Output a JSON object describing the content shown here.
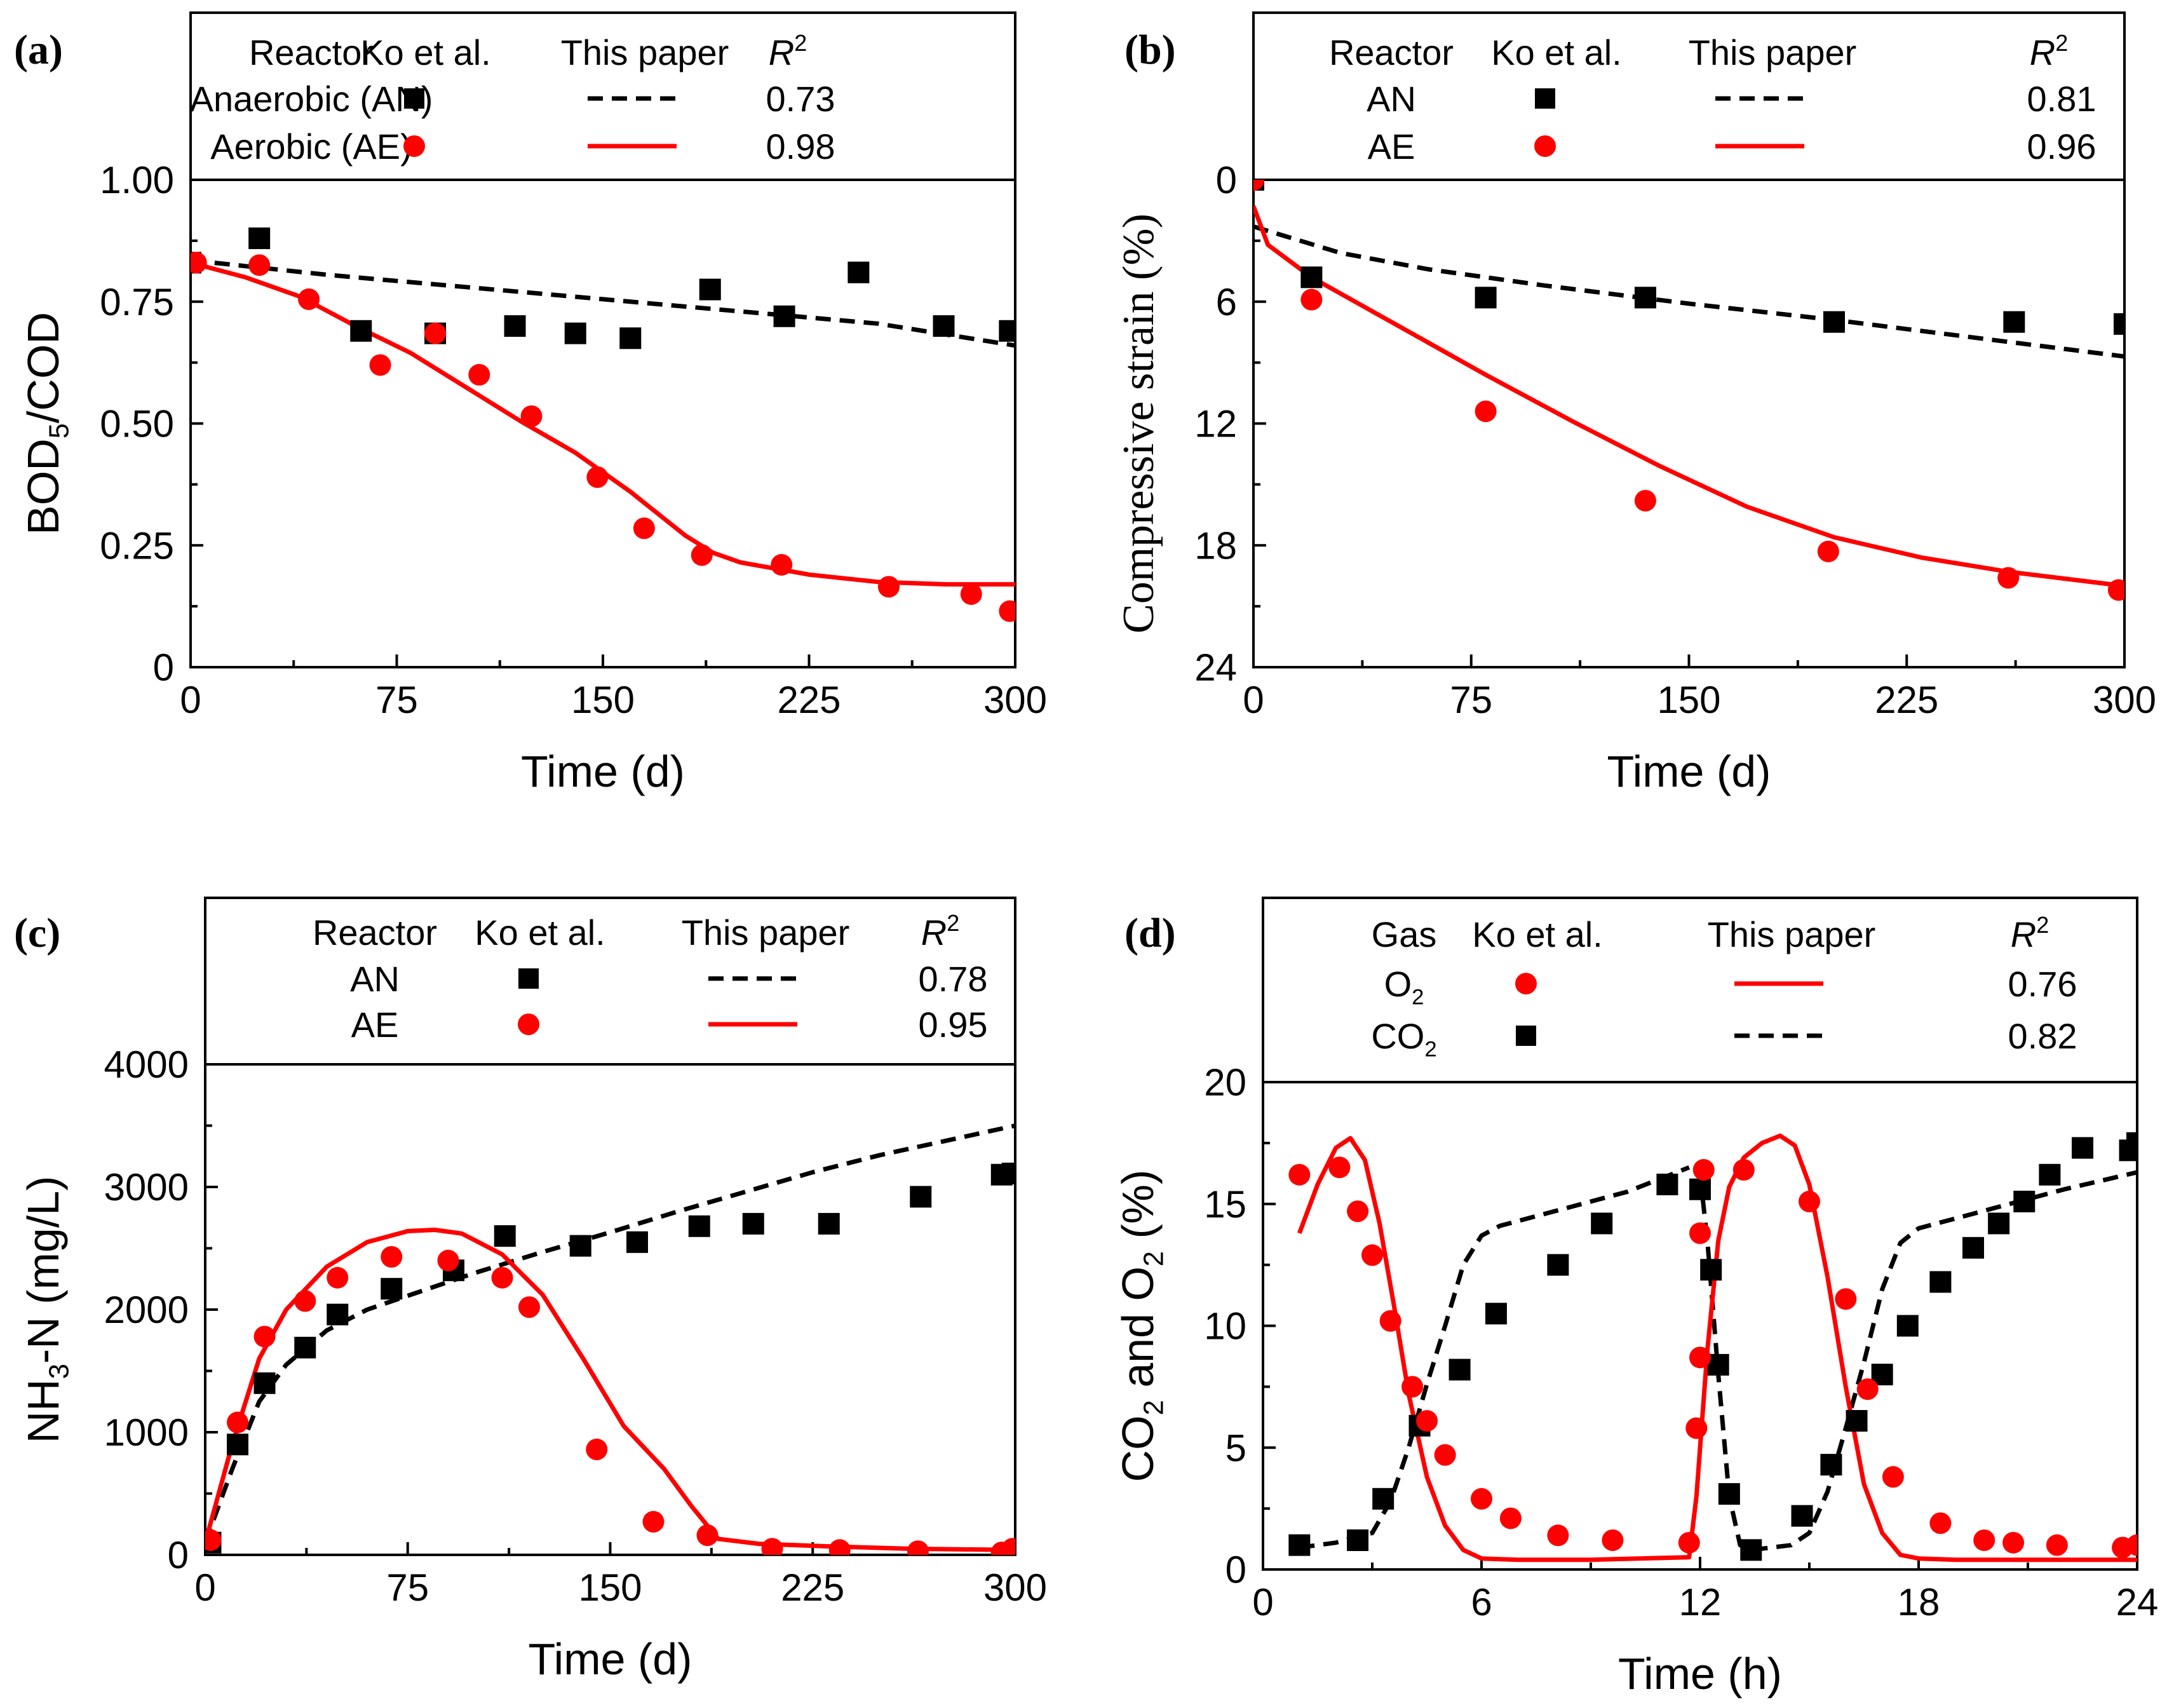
{
  "figure_title": "",
  "colors": {
    "AN": "#000000",
    "AE": "#ff0000",
    "frame": "#000000"
  },
  "chart_data": [
    {
      "panel_label": "(a)",
      "type": "scatter",
      "xlabel": "Time (d)",
      "ylabel": "BOD5/COD",
      "xlim": [
        0,
        300
      ],
      "ylim": [
        0,
        1.0
      ],
      "y_reversed": false,
      "xticks": [
        "0",
        "75",
        "150",
        "225",
        "300"
      ],
      "yticks": [
        "0",
        "0.25",
        "0.50",
        "0.75",
        "1.00"
      ],
      "xtick_values": [
        0,
        75,
        150,
        225,
        300
      ],
      "ytick_values": [
        0,
        0.25,
        0.5,
        0.75,
        1.0
      ],
      "xminor": [
        37.5,
        112.5,
        187.5,
        262.5
      ],
      "yminor": [
        0.125,
        0.375,
        0.625,
        0.875
      ],
      "legend": {
        "headers": [
          "Reactor",
          "Ko et al.",
          "This paper",
          "R2"
        ],
        "rows": [
          {
            "label": "Anaerobic (AN)",
            "marker": "square",
            "color": "#000000",
            "line": "dashed",
            "r2": "0.73"
          },
          {
            "label": "Aerobic (AE)",
            "marker": "circle",
            "color": "#ff0000",
            "line": "solid",
            "r2": "0.98"
          }
        ]
      },
      "series": [
        {
          "name": "AN",
          "kind": "points",
          "marker": "square",
          "color": "#000000",
          "x": [
            0,
            25,
            62,
            89,
            118,
            140,
            160,
            189,
            216,
            243,
            274,
            298
          ],
          "y": [
            0.83,
            0.88,
            0.69,
            0.685,
            0.7,
            0.685,
            0.675,
            0.775,
            0.72,
            0.81,
            0.7,
            0.69
          ]
        },
        {
          "name": "AE",
          "kind": "points",
          "marker": "circle",
          "color": "#ff0000",
          "x": [
            2,
            25,
            43,
            69,
            89,
            105,
            124,
            148,
            165,
            186,
            215,
            254,
            284,
            298
          ],
          "y": [
            0.83,
            0.825,
            0.755,
            0.62,
            0.685,
            0.6,
            0.515,
            0.39,
            0.285,
            0.23,
            0.21,
            0.165,
            0.15,
            0.115
          ]
        },
        {
          "name": "AN model",
          "kind": "line",
          "style": "dashed",
          "color": "#000000",
          "x": [
            0,
            50,
            100,
            150,
            200,
            250,
            300
          ],
          "y": [
            0.835,
            0.805,
            0.78,
            0.755,
            0.73,
            0.705,
            0.66
          ]
        },
        {
          "name": "AE model",
          "kind": "line",
          "style": "solid",
          "color": "#ff0000",
          "x": [
            0,
            20,
            40,
            60,
            80,
            100,
            120,
            140,
            160,
            180,
            190,
            200,
            225,
            250,
            275,
            300
          ],
          "y": [
            0.83,
            0.8,
            0.76,
            0.7,
            0.645,
            0.575,
            0.505,
            0.44,
            0.36,
            0.27,
            0.235,
            0.215,
            0.19,
            0.175,
            0.17,
            0.17
          ]
        }
      ]
    },
    {
      "panel_label": "(b)",
      "type": "scatter",
      "xlabel": "Time (d)",
      "ylabel": "Compressive strain (%)",
      "xlim": [
        0,
        300
      ],
      "ylim": [
        0,
        24
      ],
      "y_reversed": true,
      "xticks": [
        "0",
        "75",
        "150",
        "225",
        "300"
      ],
      "yticks": [
        "0",
        "6",
        "12",
        "18",
        "24"
      ],
      "xtick_values": [
        0,
        75,
        150,
        225,
        300
      ],
      "ytick_values": [
        0,
        6,
        12,
        18,
        24
      ],
      "xminor": [
        37.5,
        112.5,
        187.5,
        262.5
      ],
      "yminor": [
        3,
        9,
        15,
        21
      ],
      "legend": {
        "headers": [
          "Reactor",
          "Ko et al.",
          "This paper",
          "R2"
        ],
        "rows": [
          {
            "label": "AN",
            "marker": "square",
            "color": "#000000",
            "line": "dashed",
            "r2": "0.81"
          },
          {
            "label": "AE",
            "marker": "circle",
            "color": "#ff0000",
            "line": "solid",
            "r2": "0.96"
          }
        ]
      },
      "series": [
        {
          "name": "AN",
          "kind": "points",
          "marker": "square",
          "color": "#000000",
          "x": [
            0,
            20,
            80,
            135,
            200,
            262,
            300
          ],
          "y": [
            0,
            4.8,
            5.8,
            5.8,
            7.0,
            7.0,
            7.1
          ]
        },
        {
          "name": "AE",
          "kind": "points",
          "marker": "circle",
          "color": "#ff0000",
          "x": [
            0,
            20,
            80,
            135,
            198,
            260,
            298
          ],
          "y": [
            0,
            5.9,
            11.4,
            15.8,
            18.3,
            19.6,
            20.2
          ]
        },
        {
          "name": "AN model",
          "kind": "line",
          "style": "dashed",
          "color": "#000000",
          "x": [
            0,
            30,
            60,
            100,
            150,
            200,
            250,
            300
          ],
          "y": [
            2.3,
            3.6,
            4.4,
            5.2,
            6.1,
            6.9,
            7.8,
            8.7
          ]
        },
        {
          "name": "AE model",
          "kind": "line",
          "style": "solid",
          "color": "#ff0000",
          "x": [
            0,
            5,
            20,
            50,
            80,
            110,
            140,
            170,
            200,
            230,
            260,
            300
          ],
          "y": [
            1.3,
            3.2,
            4.8,
            7.2,
            9.6,
            11.9,
            14.1,
            16.1,
            17.6,
            18.6,
            19.3,
            20.0
          ]
        }
      ]
    },
    {
      "panel_label": "(c)",
      "type": "scatter",
      "xlabel": "Time (d)",
      "ylabel": "NH3-N (mg/L)",
      "xlim": [
        0,
        300
      ],
      "ylim": [
        0,
        4000
      ],
      "y_reversed": false,
      "xticks": [
        "0",
        "75",
        "150",
        "225",
        "300"
      ],
      "yticks": [
        "0",
        "1000",
        "2000",
        "3000",
        "4000"
      ],
      "xtick_values": [
        0,
        75,
        150,
        225,
        300
      ],
      "ytick_values": [
        0,
        1000,
        2000,
        3000,
        4000
      ],
      "xminor": [
        37.5,
        112.5,
        187.5,
        262.5
      ],
      "yminor": [
        500,
        1500,
        2500,
        3500
      ],
      "legend": {
        "headers": [
          "Reactor",
          "Ko et al.",
          "This paper",
          "R2"
        ],
        "rows": [
          {
            "label": "AN",
            "marker": "square",
            "color": "#000000",
            "line": "dashed",
            "r2": "0.78"
          },
          {
            "label": "AE",
            "marker": "circle",
            "color": "#ff0000",
            "line": "solid",
            "r2": "0.95"
          }
        ]
      },
      "series": [
        {
          "name": "AN",
          "kind": "points",
          "marker": "square",
          "color": "#000000",
          "x": [
            2,
            12,
            22,
            37,
            49,
            69,
            92,
            111,
            139,
            160,
            183,
            203,
            231,
            265,
            295,
            299
          ],
          "y": [
            100,
            900,
            1400,
            1690,
            1960,
            2170,
            2320,
            2600,
            2520,
            2550,
            2680,
            2700,
            2700,
            2920,
            3100,
            3110
          ]
        },
        {
          "name": "AE",
          "kind": "points",
          "marker": "circle",
          "color": "#ff0000",
          "x": [
            2,
            12,
            22,
            37,
            49,
            69,
            90,
            110,
            120,
            145,
            166,
            186,
            210,
            235,
            264,
            295,
            299
          ],
          "y": [
            120,
            1080,
            1780,
            2070,
            2260,
            2430,
            2400,
            2260,
            2020,
            860,
            270,
            160,
            50,
            40,
            30,
            20,
            50
          ]
        },
        {
          "name": "AN model",
          "kind": "line",
          "style": "dashed",
          "color": "#000000",
          "x": [
            0,
            10,
            20,
            30,
            45,
            60,
            80,
            100,
            125,
            150,
            175,
            200,
            225,
            250,
            275,
            300
          ],
          "y": [
            100,
            700,
            1250,
            1550,
            1830,
            2000,
            2150,
            2300,
            2470,
            2630,
            2800,
            2960,
            3120,
            3260,
            3380,
            3500
          ]
        },
        {
          "name": "AE model",
          "kind": "line",
          "style": "solid",
          "color": "#ff0000",
          "x": [
            0,
            10,
            20,
            30,
            45,
            60,
            75,
            85,
            95,
            110,
            125,
            140,
            155,
            170,
            180,
            190,
            205,
            230,
            260,
            300
          ],
          "y": [
            100,
            900,
            1600,
            2000,
            2350,
            2550,
            2640,
            2650,
            2620,
            2450,
            2120,
            1600,
            1050,
            700,
            400,
            130,
            90,
            70,
            50,
            40
          ]
        }
      ]
    },
    {
      "panel_label": "(d)",
      "type": "scatter",
      "xlabel": "Time (h)",
      "ylabel": "CO2 and O2 (%)",
      "xlim": [
        0,
        24
      ],
      "ylim": [
        0,
        20
      ],
      "y_reversed": false,
      "xticks": [
        "0",
        "6",
        "12",
        "18",
        "24"
      ],
      "yticks": [
        "0",
        "5",
        "10",
        "15",
        "20"
      ],
      "xtick_values": [
        0,
        6,
        12,
        18,
        24
      ],
      "ytick_values": [
        0,
        5,
        10,
        15,
        20
      ],
      "xminor": [
        3,
        9,
        15,
        21
      ],
      "yminor": [
        2.5,
        7.5,
        12.5,
        17.5
      ],
      "legend": {
        "headers": [
          "Gas",
          "Ko et al.",
          "This paper",
          "R2"
        ],
        "rows": [
          {
            "label": "O2",
            "marker": "circle",
            "color": "#ff0000",
            "line": "solid",
            "r2": "0.76"
          },
          {
            "label": "CO2",
            "marker": "square",
            "color": "#000000",
            "line": "dashed",
            "r2": "0.82"
          }
        ]
      },
      "series": [
        {
          "name": "CO2",
          "kind": "points",
          "marker": "square",
          "color": "#000000",
          "x": [
            1.0,
            2.6,
            3.3,
            4.3,
            5.4,
            6.4,
            8.1,
            9.3,
            11.1,
            12.0,
            12.3,
            12.5,
            12.8,
            13.4,
            14.8,
            15.6,
            16.3,
            17.0,
            17.7,
            18.6,
            19.5,
            20.2,
            20.9,
            21.6,
            22.5,
            23.8,
            24.0
          ],
          "y": [
            1.0,
            1.2,
            2.9,
            5.9,
            8.2,
            10.5,
            12.5,
            14.2,
            15.8,
            15.6,
            12.3,
            8.4,
            3.1,
            0.8,
            2.2,
            4.3,
            6.1,
            8.0,
            10.0,
            11.8,
            13.2,
            14.2,
            15.1,
            16.2,
            17.3,
            17.2,
            17.5
          ]
        },
        {
          "name": "O2",
          "kind": "points",
          "marker": "circle",
          "color": "#ff0000",
          "x": [
            1.0,
            2.1,
            2.6,
            3.0,
            3.5,
            4.1,
            4.5,
            5.0,
            6.0,
            6.8,
            8.1,
            9.6,
            11.7,
            11.9,
            12.0,
            12.0,
            12.1,
            13.2,
            15.0,
            16.0,
            16.6,
            17.3,
            18.6,
            19.8,
            20.6,
            21.8,
            23.6,
            24.0
          ],
          "y": [
            16.2,
            16.5,
            14.7,
            12.9,
            10.2,
            7.5,
            6.1,
            4.7,
            2.9,
            2.1,
            1.4,
            1.2,
            1.1,
            5.8,
            8.7,
            13.8,
            16.4,
            16.4,
            15.1,
            11.1,
            7.4,
            3.8,
            1.9,
            1.2,
            1.1,
            1.0,
            0.9,
            1.0
          ]
        },
        {
          "name": "CO2 model",
          "kind": "line",
          "style": "dashed",
          "color": "#000000",
          "x": [
            1,
            2,
            3,
            3.5,
            4,
            4.5,
            5,
            5.5,
            6,
            6.5,
            8,
            10,
            11.7
          ],
          "y": [
            0.9,
            1.1,
            1.5,
            2.8,
            5.0,
            7.6,
            10.0,
            12.5,
            13.7,
            14.1,
            14.7,
            15.5,
            16.5
          ]
        },
        {
          "name": "CO2 model 2",
          "kind": "line",
          "style": "dashed",
          "color": "#000000",
          "x": [
            12.0,
            12.2,
            12.5,
            12.8,
            13.1,
            13.4,
            14.5,
            15.0,
            15.5,
            16.0,
            16.5,
            17.0,
            17.5,
            18.0,
            19.0,
            20.0,
            22.0,
            24.0
          ],
          "y": [
            16.2,
            13.5,
            8.0,
            3.0,
            1.0,
            0.8,
            1.0,
            1.5,
            3.2,
            5.8,
            8.5,
            11.5,
            13.4,
            14.0,
            14.4,
            14.8,
            15.6,
            16.3
          ]
        },
        {
          "name": "O2 model",
          "kind": "line",
          "style": "solid",
          "color": "#ff0000",
          "x": [
            1,
            1.5,
            2,
            2.4,
            2.8,
            3.2,
            3.6,
            4.0,
            4.5,
            5.0,
            5.5,
            6.0,
            7,
            9,
            11.7,
            11.9,
            12.2,
            12.5,
            12.8,
            13.2,
            13.7,
            14.2,
            14.6,
            15.0,
            15.5,
            16.0,
            16.5,
            17.0,
            17.5,
            18.0,
            19,
            21,
            24
          ],
          "y": [
            13.8,
            15.8,
            17.3,
            17.7,
            16.8,
            14.2,
            10.8,
            7.2,
            3.8,
            1.8,
            0.8,
            0.45,
            0.4,
            0.4,
            0.5,
            3.0,
            9.0,
            13.5,
            15.7,
            16.9,
            17.5,
            17.8,
            17.4,
            15.8,
            12.0,
            7.5,
            3.5,
            1.5,
            0.6,
            0.45,
            0.4,
            0.4,
            0.4
          ]
        }
      ]
    }
  ]
}
